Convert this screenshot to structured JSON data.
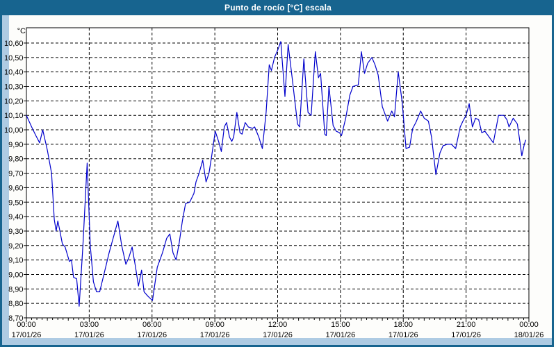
{
  "window": {
    "title": "Punto de rocío [°C] escala",
    "titlebar_color": "#17648f",
    "frame_color": "#aecbe3"
  },
  "chart_data": {
    "type": "line",
    "title": "Punto de rocío [°C] escala",
    "ylabel": "°C",
    "xlabel": "",
    "grid": "dashed",
    "legend": "none",
    "line_color": "#0000cc",
    "ylim": [
      8.7,
      10.71
    ],
    "y_base": 8.7,
    "y_step": 0.1,
    "y_tick_labels": [
      "8,70",
      "8,80",
      "8,90",
      "9,00",
      "9,10",
      "9,20",
      "9,30",
      "9,40",
      "9,50",
      "9,60",
      "9,70",
      "9,80",
      "9,90",
      "10,00",
      "10,10",
      "10,20",
      "10,30",
      "10,40",
      "10,50",
      "10,60"
    ],
    "xlim_hours": [
      0,
      24
    ],
    "x_ticks": [
      {
        "hour": 0,
        "time": "00:00",
        "date": "17/01/26"
      },
      {
        "hour": 3,
        "time": "03:00",
        "date": "17/01/26"
      },
      {
        "hour": 6,
        "time": "06:00",
        "date": "17/01/26"
      },
      {
        "hour": 9,
        "time": "09:00",
        "date": "17/01/26"
      },
      {
        "hour": 12,
        "time": "12:00",
        "date": "17/01/26"
      },
      {
        "hour": 15,
        "time": "15:00",
        "date": "17/01/26"
      },
      {
        "hour": 18,
        "time": "18:00",
        "date": "17/01/26"
      },
      {
        "hour": 21,
        "time": "21:00",
        "date": "17/01/26"
      },
      {
        "hour": 24,
        "time": "00:00",
        "date": "18/01/26"
      }
    ],
    "series": [
      {
        "name": "Punto de rocío [°C]",
        "color": "#0000cc",
        "points": [
          [
            0,
            10.1
          ],
          [
            0.25,
            10.02
          ],
          [
            0.45,
            9.96
          ],
          [
            0.63,
            9.91
          ],
          [
            0.78,
            10.0
          ],
          [
            1.0,
            9.86
          ],
          [
            1.2,
            9.7
          ],
          [
            1.33,
            9.38
          ],
          [
            1.42,
            9.3
          ],
          [
            1.5,
            9.37
          ],
          [
            1.6,
            9.3
          ],
          [
            1.72,
            9.21
          ],
          [
            1.85,
            9.19
          ],
          [
            2.05,
            9.09
          ],
          [
            2.15,
            9.1
          ],
          [
            2.25,
            8.98
          ],
          [
            2.4,
            8.97
          ],
          [
            2.52,
            8.78
          ],
          [
            2.7,
            9.2
          ],
          [
            2.9,
            9.77
          ],
          [
            3.05,
            9.2
          ],
          [
            3.2,
            8.95
          ],
          [
            3.35,
            8.88
          ],
          [
            3.5,
            8.88
          ],
          [
            3.7,
            9.0
          ],
          [
            3.95,
            9.15
          ],
          [
            4.2,
            9.28
          ],
          [
            4.37,
            9.37
          ],
          [
            4.55,
            9.2
          ],
          [
            4.75,
            9.07
          ],
          [
            4.9,
            9.12
          ],
          [
            5.05,
            9.19
          ],
          [
            5.2,
            9.06
          ],
          [
            5.35,
            8.92
          ],
          [
            5.5,
            9.03
          ],
          [
            5.62,
            8.88
          ],
          [
            5.8,
            8.85
          ],
          [
            6.02,
            8.82
          ],
          [
            6.25,
            9.05
          ],
          [
            6.5,
            9.15
          ],
          [
            6.7,
            9.25
          ],
          [
            6.85,
            9.28
          ],
          [
            7.0,
            9.15
          ],
          [
            7.15,
            9.1
          ],
          [
            7.3,
            9.22
          ],
          [
            7.45,
            9.37
          ],
          [
            7.6,
            9.49
          ],
          [
            7.8,
            9.5
          ],
          [
            8.0,
            9.56
          ],
          [
            8.1,
            9.64
          ],
          [
            8.25,
            9.7
          ],
          [
            8.42,
            9.79
          ],
          [
            8.58,
            9.64
          ],
          [
            8.72,
            9.7
          ],
          [
            8.85,
            9.82
          ],
          [
            9.02,
            9.99
          ],
          [
            9.18,
            9.92
          ],
          [
            9.31,
            9.85
          ],
          [
            9.45,
            10.02
          ],
          [
            9.56,
            10.05
          ],
          [
            9.7,
            9.95
          ],
          [
            9.81,
            9.92
          ],
          [
            9.9,
            9.95
          ],
          [
            10.05,
            10.12
          ],
          [
            10.2,
            9.98
          ],
          [
            10.3,
            9.97
          ],
          [
            10.45,
            10.05
          ],
          [
            10.6,
            10.02
          ],
          [
            10.8,
            10.01
          ],
          [
            10.9,
            10.02
          ],
          [
            11.1,
            9.95
          ],
          [
            11.27,
            9.87
          ],
          [
            11.45,
            10.12
          ],
          [
            11.6,
            10.45
          ],
          [
            11.7,
            10.41
          ],
          [
            11.85,
            10.5
          ],
          [
            12.0,
            10.55
          ],
          [
            12.15,
            10.61
          ],
          [
            12.35,
            10.23
          ],
          [
            12.5,
            10.59
          ],
          [
            12.7,
            10.35
          ],
          [
            12.95,
            10.04
          ],
          [
            13.05,
            10.02
          ],
          [
            13.25,
            10.49
          ],
          [
            13.45,
            10.12
          ],
          [
            13.6,
            10.1
          ],
          [
            13.8,
            10.54
          ],
          [
            13.95,
            10.36
          ],
          [
            14.05,
            10.39
          ],
          [
            14.25,
            9.97
          ],
          [
            14.32,
            9.96
          ],
          [
            14.45,
            10.3
          ],
          [
            14.65,
            10.03
          ],
          [
            14.8,
            9.99
          ],
          [
            14.95,
            9.98
          ],
          [
            15.05,
            9.96
          ],
          [
            15.25,
            10.08
          ],
          [
            15.45,
            10.24
          ],
          [
            15.6,
            10.3
          ],
          [
            15.85,
            10.31
          ],
          [
            16.0,
            10.54
          ],
          [
            16.15,
            10.39
          ],
          [
            16.3,
            10.46
          ],
          [
            16.5,
            10.5
          ],
          [
            16.65,
            10.45
          ],
          [
            16.8,
            10.38
          ],
          [
            17.0,
            10.16
          ],
          [
            17.25,
            10.06
          ],
          [
            17.45,
            10.13
          ],
          [
            17.58,
            10.09
          ],
          [
            17.76,
            10.4
          ],
          [
            17.95,
            10.19
          ],
          [
            18.13,
            9.87
          ],
          [
            18.3,
            9.88
          ],
          [
            18.45,
            10.01
          ],
          [
            18.6,
            10.05
          ],
          [
            18.83,
            10.13
          ],
          [
            19.0,
            10.08
          ],
          [
            19.2,
            10.06
          ],
          [
            19.35,
            9.95
          ],
          [
            19.56,
            9.69
          ],
          [
            19.75,
            9.84
          ],
          [
            19.9,
            9.89
          ],
          [
            20.1,
            9.9
          ],
          [
            20.3,
            9.9
          ],
          [
            20.5,
            9.87
          ],
          [
            20.72,
            10.02
          ],
          [
            20.85,
            10.06
          ],
          [
            21.0,
            10.1
          ],
          [
            21.15,
            10.18
          ],
          [
            21.3,
            10.02
          ],
          [
            21.45,
            10.08
          ],
          [
            21.6,
            10.07
          ],
          [
            21.75,
            9.98
          ],
          [
            21.9,
            9.99
          ],
          [
            22.05,
            9.96
          ],
          [
            22.3,
            9.91
          ],
          [
            22.55,
            10.1
          ],
          [
            22.8,
            10.1
          ],
          [
            22.95,
            10.07
          ],
          [
            23.05,
            10.02
          ],
          [
            23.25,
            10.08
          ],
          [
            23.45,
            10.04
          ],
          [
            23.58,
            9.91
          ],
          [
            23.66,
            9.82
          ],
          [
            23.78,
            9.9
          ],
          [
            23.85,
            9.93
          ]
        ]
      }
    ]
  }
}
